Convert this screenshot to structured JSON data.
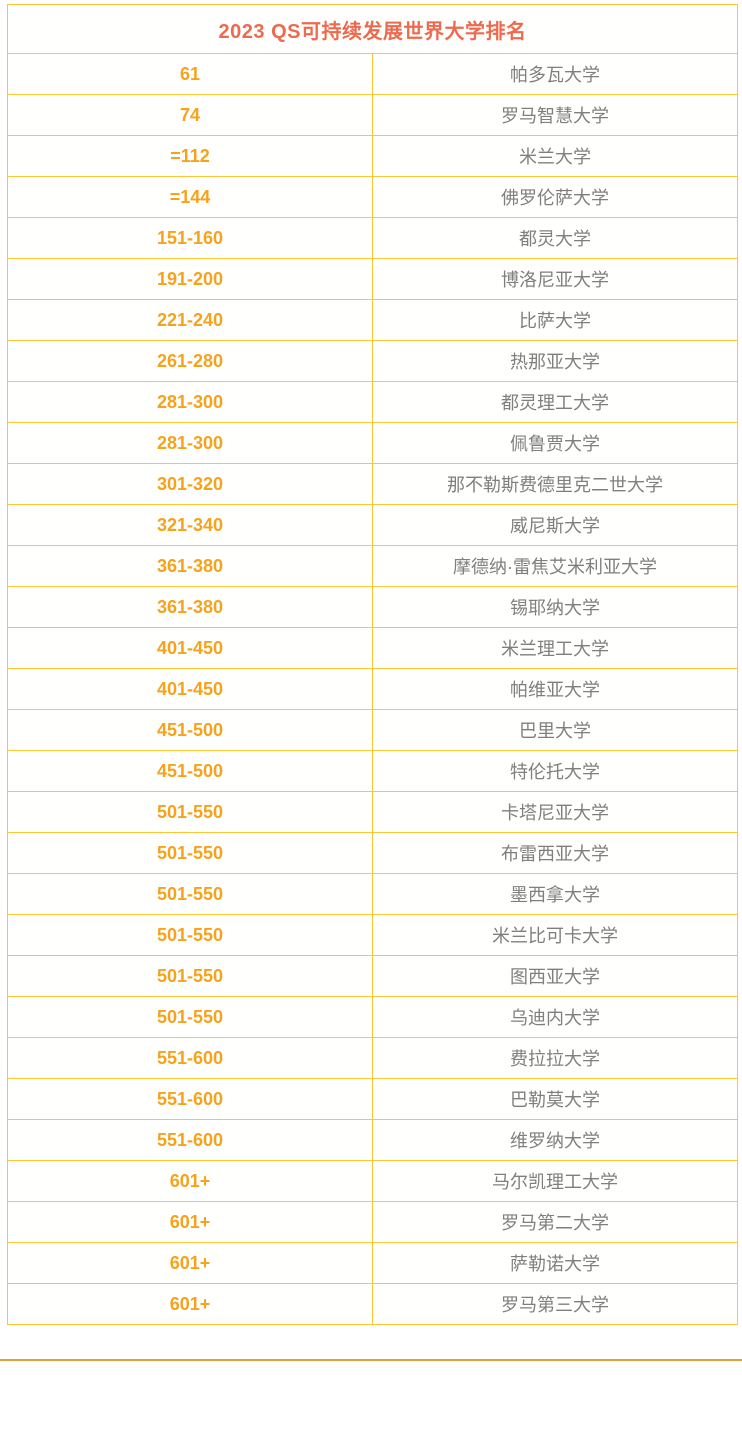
{
  "table": {
    "title": "2023 QS可持续发展世界大学排名",
    "title_color": "#ee6a4e",
    "border_color": "#fec433",
    "rank_color": "#f7a21d",
    "university_color": "#7f7f7f",
    "columns": [
      "rank",
      "university"
    ],
    "rows": [
      {
        "rank": "61",
        "university": "帕多瓦大学"
      },
      {
        "rank": "74",
        "university": "罗马智慧大学"
      },
      {
        "rank": "=112",
        "university": "米兰大学"
      },
      {
        "rank": "=144",
        "university": "佛罗伦萨大学"
      },
      {
        "rank": "151-160",
        "university": "都灵大学"
      },
      {
        "rank": "191-200",
        "university": "博洛尼亚大学"
      },
      {
        "rank": "221-240",
        "university": "比萨大学"
      },
      {
        "rank": "261-280",
        "university": "热那亚大学"
      },
      {
        "rank": "281-300",
        "university": "都灵理工大学"
      },
      {
        "rank": "281-300",
        "university": "佩鲁贾大学"
      },
      {
        "rank": "301-320",
        "university": "那不勒斯费德里克二世大学"
      },
      {
        "rank": "321-340",
        "university": "威尼斯大学"
      },
      {
        "rank": "361-380",
        "university": "摩德纳·雷焦艾米利亚大学"
      },
      {
        "rank": "361-380",
        "university": "锡耶纳大学"
      },
      {
        "rank": "401-450",
        "university": "米兰理工大学"
      },
      {
        "rank": "401-450",
        "university": "帕维亚大学"
      },
      {
        "rank": "451-500",
        "university": "巴里大学"
      },
      {
        "rank": "451-500",
        "university": "特伦托大学"
      },
      {
        "rank": "501-550",
        "university": "卡塔尼亚大学"
      },
      {
        "rank": "501-550",
        "university": "布雷西亚大学"
      },
      {
        "rank": "501-550",
        "university": "墨西拿大学"
      },
      {
        "rank": "501-550",
        "university": "米兰比可卡大学"
      },
      {
        "rank": "501-550",
        "university": "图西亚大学"
      },
      {
        "rank": "501-550",
        "university": "乌迪内大学"
      },
      {
        "rank": "551-600",
        "university": "费拉拉大学"
      },
      {
        "rank": "551-600",
        "university": "巴勒莫大学"
      },
      {
        "rank": "551-600",
        "university": "维罗纳大学"
      },
      {
        "rank": "601+",
        "university": "马尔凯理工大学"
      },
      {
        "rank": "601+",
        "university": "罗马第二大学"
      },
      {
        "rank": "601+",
        "university": "萨勒诺大学"
      },
      {
        "rank": "601+",
        "university": "罗马第三大学"
      }
    ]
  },
  "divider": {
    "color": "#e2a33c"
  }
}
